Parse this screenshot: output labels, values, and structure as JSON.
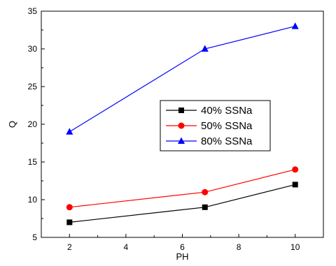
{
  "chart_data": {
    "type": "line",
    "title": "",
    "xlabel": "PH",
    "ylabel": "Q",
    "xlim": [
      1,
      11
    ],
    "ylim": [
      5,
      35
    ],
    "xticks": [
      2,
      4,
      6,
      8,
      10
    ],
    "yticks": [
      5,
      10,
      15,
      20,
      25,
      30,
      35
    ],
    "grid": false,
    "legend_position": "center-right",
    "series": [
      {
        "name": "40% SSNa",
        "color": "#000000",
        "marker": "square",
        "x": [
          2,
          6.8,
          10
        ],
        "y": [
          7,
          9,
          12
        ]
      },
      {
        "name": "50% SSNa",
        "color": "#ff0000",
        "marker": "circle",
        "x": [
          2,
          6.8,
          10
        ],
        "y": [
          9,
          11,
          14
        ]
      },
      {
        "name": "80% SSNa",
        "color": "#0000ff",
        "marker": "triangle",
        "x": [
          2,
          6.8,
          10
        ],
        "y": [
          19,
          30,
          33
        ]
      }
    ]
  }
}
